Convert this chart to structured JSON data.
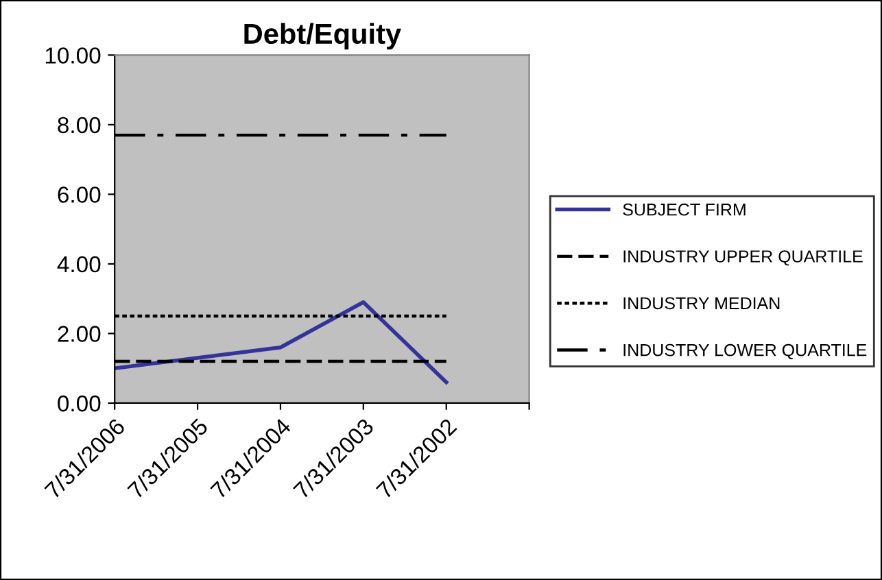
{
  "chart_data": {
    "type": "line",
    "title": "Debt/Equity",
    "categories": [
      "7/31/2006",
      "7/31/2005",
      "7/31/2004",
      "7/31/2003",
      "7/31/2002",
      null
    ],
    "series": [
      {
        "name": "SUBJECT FIRM",
        "color": "#333399",
        "line_style": "solid",
        "values": [
          1.0,
          1.3,
          1.6,
          2.9,
          0.6,
          null
        ]
      },
      {
        "name": "INDUSTRY UPPER QUARTILE",
        "color": "#000000",
        "line_style": "dashed",
        "values": [
          1.2,
          1.2,
          1.2,
          1.2,
          1.2,
          null
        ]
      },
      {
        "name": "INDUSTRY MEDIAN",
        "color": "#000000",
        "line_style": "dotted",
        "values": [
          2.5,
          2.5,
          2.5,
          2.5,
          2.5,
          null
        ]
      },
      {
        "name": "INDUSTRY LOWER QUARTILE",
        "color": "#000000",
        "line_style": "dashdot",
        "values": [
          7.7,
          7.7,
          7.7,
          7.7,
          7.7,
          null
        ]
      }
    ],
    "ylim": [
      0,
      10
    ],
    "yticks": [
      {
        "value": 0,
        "label": "0.00"
      },
      {
        "value": 2,
        "label": "2.00"
      },
      {
        "value": 4,
        "label": "4.00"
      },
      {
        "value": 6,
        "label": "6.00"
      },
      {
        "value": 8,
        "label": "8.00"
      },
      {
        "value": 10,
        "label": "10.00"
      }
    ],
    "grid": false,
    "legend": "right",
    "marker": "none"
  }
}
